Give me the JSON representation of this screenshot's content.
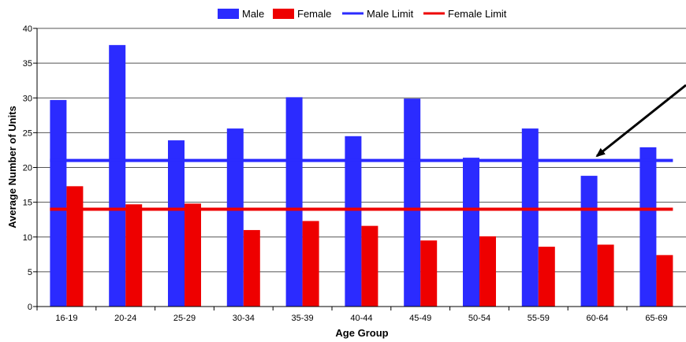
{
  "chart_data": {
    "type": "bar",
    "title": "",
    "xlabel": "Age Group",
    "ylabel": "Average Number of  Units",
    "categories": [
      "16-19",
      "20-24",
      "25-29",
      "30-34",
      "35-39",
      "40-44",
      "45-49",
      "50-54",
      "55-59",
      "60-64",
      "65-69"
    ],
    "series": [
      {
        "name": "Male",
        "color": "#2b2bff",
        "values": [
          29.7,
          37.6,
          23.9,
          25.6,
          30.1,
          24.5,
          29.9,
          21.4,
          25.6,
          18.8,
          22.9
        ]
      },
      {
        "name": "Female",
        "color": "#ee0000",
        "values": [
          17.3,
          14.7,
          14.8,
          11.0,
          12.3,
          11.6,
          9.5,
          10.1,
          8.6,
          8.9,
          7.4
        ]
      }
    ],
    "reference_lines": [
      {
        "name": "Male Limit",
        "color": "#2b2bff",
        "value": 21
      },
      {
        "name": "Female Limit",
        "color": "#ee0000",
        "value": 14
      }
    ],
    "ylim": [
      0,
      40
    ],
    "yticks": [
      0,
      5,
      10,
      15,
      20,
      25,
      30,
      35,
      40
    ],
    "grid": true,
    "legend_position": "top-center",
    "annotation": {
      "type": "arrow",
      "points_to": "Male Limit"
    }
  }
}
